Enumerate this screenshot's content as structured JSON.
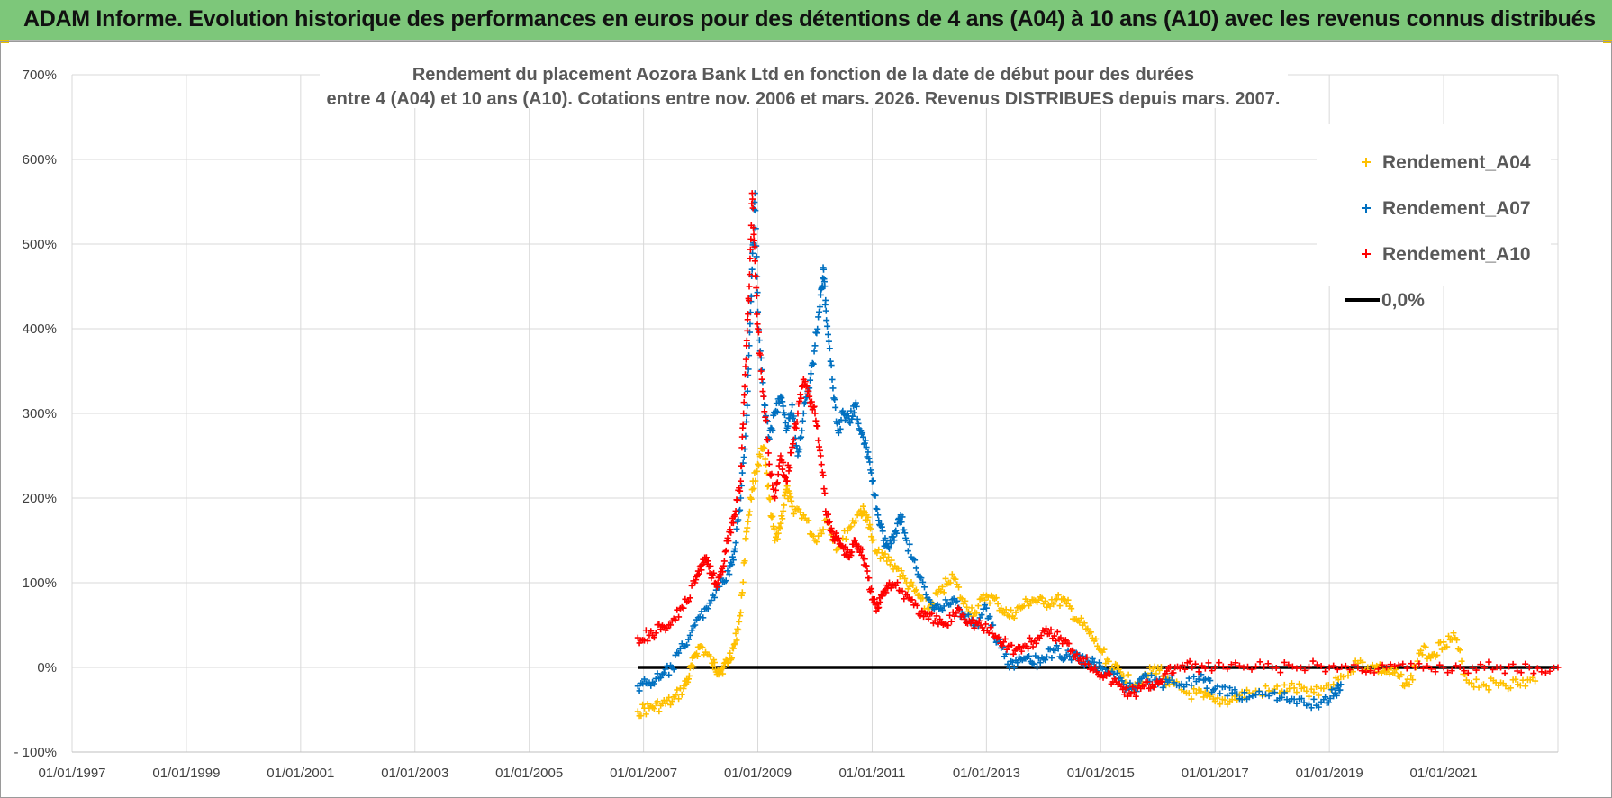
{
  "banner": {
    "title": "ADAM Informe. Evolution historique des performances en euros pour des détentions de 4 ans (A04) à 10 ans (A10) avec les revenus connus distribués"
  },
  "colors": {
    "banner_bg": "#7dc77a",
    "a04": "#ffc000",
    "a07": "#0070c0",
    "a10": "#ff0000",
    "zero_line": "#000000"
  },
  "chart_data": {
    "type": "scatter",
    "title_lines": [
      "Rendement du placement Aozora Bank Ltd en fonction de la date de début pour des durées",
      "entre 4 (A04) et 10 ans (A10). Cotations entre nov. 2006 et mars. 2026. Revenus DISTRIBUES depuis mars. 2007."
    ],
    "xlim": [
      1997.0,
      2023.0
    ],
    "ylim": [
      -100,
      700
    ],
    "y_ticks": [
      {
        "value": 700,
        "label": "700%"
      },
      {
        "value": 600,
        "label": "600%"
      },
      {
        "value": 500,
        "label": "500%"
      },
      {
        "value": 400,
        "label": "400%"
      },
      {
        "value": 300,
        "label": "300%"
      },
      {
        "value": 200,
        "label": "200%"
      },
      {
        "value": 100,
        "label": "100%"
      },
      {
        "value": 0,
        "label": "0%"
      },
      {
        "value": -100,
        "label": "- 100%"
      }
    ],
    "x_ticks": [
      {
        "value": 1997,
        "label": "01/01/1997"
      },
      {
        "value": 1999,
        "label": "01/01/1999"
      },
      {
        "value": 2001,
        "label": "01/01/2001"
      },
      {
        "value": 2003,
        "label": "01/01/2003"
      },
      {
        "value": 2005,
        "label": "01/01/2005"
      },
      {
        "value": 2007,
        "label": "01/01/2007"
      },
      {
        "value": 2009,
        "label": "01/01/2009"
      },
      {
        "value": 2011,
        "label": "01/01/2011"
      },
      {
        "value": 2013,
        "label": "01/01/2013"
      },
      {
        "value": 2015,
        "label": "01/01/2015"
      },
      {
        "value": 2017,
        "label": "01/01/2017"
      },
      {
        "value": 2019,
        "label": "01/01/2019"
      },
      {
        "value": 2021,
        "label": "01/01/2021"
      }
    ],
    "grid": true,
    "legend_position": "top-right",
    "series": [
      {
        "name": "Rendement_A04",
        "marker": "+",
        "color": "#ffc000",
        "points": [
          [
            2006.9,
            -52
          ],
          [
            2007.1,
            -48
          ],
          [
            2007.3,
            -45
          ],
          [
            2007.5,
            -40
          ],
          [
            2007.7,
            -25
          ],
          [
            2007.8,
            -10
          ],
          [
            2007.9,
            15
          ],
          [
            2008.0,
            25
          ],
          [
            2008.2,
            5
          ],
          [
            2008.3,
            -3
          ],
          [
            2008.4,
            0
          ],
          [
            2008.5,
            10
          ],
          [
            2008.6,
            28
          ],
          [
            2008.7,
            65
          ],
          [
            2008.8,
            160
          ],
          [
            2008.9,
            210
          ],
          [
            2009.0,
            240
          ],
          [
            2009.1,
            260
          ],
          [
            2009.2,
            200
          ],
          [
            2009.3,
            150
          ],
          [
            2009.4,
            170
          ],
          [
            2009.5,
            210
          ],
          [
            2009.6,
            190
          ],
          [
            2009.8,
            180
          ],
          [
            2010.0,
            150
          ],
          [
            2010.2,
            175
          ],
          [
            2010.4,
            140
          ],
          [
            2010.6,
            165
          ],
          [
            2010.8,
            185
          ],
          [
            2010.9,
            180
          ],
          [
            2011.0,
            150
          ],
          [
            2011.2,
            130
          ],
          [
            2011.4,
            120
          ],
          [
            2011.6,
            100
          ],
          [
            2011.8,
            85
          ],
          [
            2012.0,
            70
          ],
          [
            2012.2,
            90
          ],
          [
            2012.4,
            110
          ],
          [
            2012.6,
            75
          ],
          [
            2012.8,
            65
          ],
          [
            2013.0,
            85
          ],
          [
            2013.2,
            75
          ],
          [
            2013.4,
            60
          ],
          [
            2013.6,
            70
          ],
          [
            2013.8,
            80
          ],
          [
            2014.0,
            75
          ],
          [
            2014.2,
            80
          ],
          [
            2014.4,
            75
          ],
          [
            2014.6,
            55
          ],
          [
            2014.8,
            40
          ],
          [
            2015.0,
            20
          ],
          [
            2015.2,
            0
          ],
          [
            2015.4,
            -10
          ],
          [
            2015.6,
            -20
          ],
          [
            2015.8,
            -10
          ],
          [
            2016.0,
            0
          ],
          [
            2016.2,
            -20
          ],
          [
            2016.5,
            -30
          ],
          [
            2016.8,
            -35
          ],
          [
            2017.0,
            -40
          ],
          [
            2017.3,
            -38
          ],
          [
            2017.6,
            -30
          ],
          [
            2018.0,
            -28
          ],
          [
            2018.3,
            -25
          ],
          [
            2018.6,
            -28
          ],
          [
            2018.9,
            -25
          ],
          [
            2019.2,
            -10
          ],
          [
            2019.5,
            5
          ],
          [
            2019.8,
            0
          ],
          [
            2020.0,
            -5
          ],
          [
            2020.2,
            -10
          ],
          [
            2020.4,
            -20
          ],
          [
            2020.6,
            20
          ],
          [
            2020.8,
            15
          ],
          [
            2021.0,
            30
          ],
          [
            2021.2,
            35
          ],
          [
            2021.4,
            -15
          ],
          [
            2021.7,
            -20
          ],
          [
            2022.0,
            -18
          ],
          [
            2022.3,
            -20
          ],
          [
            2022.6,
            -16
          ]
        ]
      },
      {
        "name": "Rendement_A07",
        "marker": "+",
        "color": "#0070c0",
        "points": [
          [
            2006.9,
            -22
          ],
          [
            2007.1,
            -18
          ],
          [
            2007.3,
            -12
          ],
          [
            2007.5,
            0
          ],
          [
            2007.7,
            25
          ],
          [
            2007.9,
            50
          ],
          [
            2008.1,
            70
          ],
          [
            2008.3,
            95
          ],
          [
            2008.5,
            110
          ],
          [
            2008.6,
            140
          ],
          [
            2008.7,
            200
          ],
          [
            2008.8,
            290
          ],
          [
            2008.85,
            380
          ],
          [
            2008.9,
            470
          ],
          [
            2008.95,
            560
          ],
          [
            2009.0,
            420
          ],
          [
            2009.1,
            320
          ],
          [
            2009.2,
            270
          ],
          [
            2009.3,
            300
          ],
          [
            2009.4,
            320
          ],
          [
            2009.5,
            280
          ],
          [
            2009.6,
            310
          ],
          [
            2009.7,
            250
          ],
          [
            2009.8,
            300
          ],
          [
            2009.9,
            330
          ],
          [
            2010.0,
            380
          ],
          [
            2010.1,
            440
          ],
          [
            2010.15,
            470
          ],
          [
            2010.2,
            410
          ],
          [
            2010.3,
            340
          ],
          [
            2010.4,
            280
          ],
          [
            2010.5,
            300
          ],
          [
            2010.6,
            290
          ],
          [
            2010.7,
            310
          ],
          [
            2010.8,
            280
          ],
          [
            2010.9,
            260
          ],
          [
            2011.0,
            220
          ],
          [
            2011.1,
            180
          ],
          [
            2011.2,
            150
          ],
          [
            2011.3,
            140
          ],
          [
            2011.4,
            160
          ],
          [
            2011.5,
            180
          ],
          [
            2011.6,
            150
          ],
          [
            2011.8,
            110
          ],
          [
            2012.0,
            80
          ],
          [
            2012.2,
            70
          ],
          [
            2012.4,
            80
          ],
          [
            2012.6,
            60
          ],
          [
            2012.8,
            50
          ],
          [
            2013.0,
            70
          ],
          [
            2013.2,
            30
          ],
          [
            2013.4,
            0
          ],
          [
            2013.6,
            10
          ],
          [
            2013.8,
            5
          ],
          [
            2014.0,
            10
          ],
          [
            2014.2,
            20
          ],
          [
            2014.4,
            15
          ],
          [
            2014.6,
            10
          ],
          [
            2014.8,
            5
          ],
          [
            2015.0,
            0
          ],
          [
            2015.2,
            -5
          ],
          [
            2015.4,
            -20
          ],
          [
            2015.6,
            -25
          ],
          [
            2015.8,
            -10
          ],
          [
            2016.0,
            -20
          ],
          [
            2016.2,
            -15
          ],
          [
            2016.5,
            -20
          ],
          [
            2016.8,
            -15
          ],
          [
            2017.0,
            -25
          ],
          [
            2017.3,
            -30
          ],
          [
            2017.6,
            -35
          ],
          [
            2018.0,
            -30
          ],
          [
            2018.3,
            -40
          ],
          [
            2018.6,
            -45
          ],
          [
            2018.9,
            -38
          ],
          [
            2019.1,
            -30
          ],
          [
            2019.2,
            -20
          ]
        ]
      },
      {
        "name": "Rendement_A10",
        "marker": "+",
        "color": "#ff0000",
        "points": [
          [
            2006.9,
            35
          ],
          [
            2007.1,
            38
          ],
          [
            2007.3,
            45
          ],
          [
            2007.5,
            55
          ],
          [
            2007.7,
            70
          ],
          [
            2007.9,
            100
          ],
          [
            2008.0,
            120
          ],
          [
            2008.1,
            130
          ],
          [
            2008.2,
            110
          ],
          [
            2008.3,
            100
          ],
          [
            2008.4,
            120
          ],
          [
            2008.5,
            160
          ],
          [
            2008.6,
            180
          ],
          [
            2008.7,
            220
          ],
          [
            2008.75,
            300
          ],
          [
            2008.8,
            380
          ],
          [
            2008.85,
            450
          ],
          [
            2008.9,
            560
          ],
          [
            2008.95,
            480
          ],
          [
            2009.0,
            400
          ],
          [
            2009.1,
            320
          ],
          [
            2009.2,
            240
          ],
          [
            2009.3,
            200
          ],
          [
            2009.4,
            250
          ],
          [
            2009.5,
            220
          ],
          [
            2009.6,
            260
          ],
          [
            2009.7,
            300
          ],
          [
            2009.8,
            340
          ],
          [
            2009.9,
            320
          ],
          [
            2010.0,
            300
          ],
          [
            2010.1,
            250
          ],
          [
            2010.2,
            180
          ],
          [
            2010.3,
            160
          ],
          [
            2010.4,
            150
          ],
          [
            2010.5,
            140
          ],
          [
            2010.6,
            130
          ],
          [
            2010.7,
            150
          ],
          [
            2010.8,
            140
          ],
          [
            2010.9,
            120
          ],
          [
            2011.0,
            80
          ],
          [
            2011.1,
            70
          ],
          [
            2011.2,
            90
          ],
          [
            2011.3,
            100
          ],
          [
            2011.5,
            90
          ],
          [
            2011.7,
            80
          ],
          [
            2011.9,
            60
          ],
          [
            2012.1,
            55
          ],
          [
            2012.3,
            50
          ],
          [
            2012.5,
            70
          ],
          [
            2012.7,
            55
          ],
          [
            2012.9,
            50
          ],
          [
            2013.1,
            40
          ],
          [
            2013.3,
            30
          ],
          [
            2013.5,
            20
          ],
          [
            2013.7,
            25
          ],
          [
            2013.9,
            35
          ],
          [
            2014.1,
            40
          ],
          [
            2014.3,
            35
          ],
          [
            2014.5,
            20
          ],
          [
            2014.7,
            10
          ],
          [
            2014.9,
            0
          ],
          [
            2015.1,
            -10
          ],
          [
            2015.3,
            -20
          ],
          [
            2015.5,
            -30
          ],
          [
            2015.7,
            -25
          ],
          [
            2015.9,
            -20
          ],
          [
            2016.1,
            -10
          ],
          [
            2016.3,
            0
          ],
          [
            2016.6,
            0
          ],
          [
            2017.0,
            0
          ],
          [
            2017.5,
            0
          ],
          [
            2018.0,
            0
          ],
          [
            2018.5,
            0
          ],
          [
            2019.0,
            0
          ],
          [
            2019.5,
            0
          ],
          [
            2020.0,
            0
          ],
          [
            2020.5,
            0
          ],
          [
            2021.0,
            0
          ],
          [
            2021.5,
            0
          ],
          [
            2022.0,
            0
          ],
          [
            2022.5,
            0
          ],
          [
            2023.0,
            0
          ]
        ]
      }
    ],
    "reference_line": {
      "name": "0,0%",
      "value": 0,
      "x_start": 2006.9,
      "x_end": 2023.0,
      "color": "#000000"
    }
  }
}
